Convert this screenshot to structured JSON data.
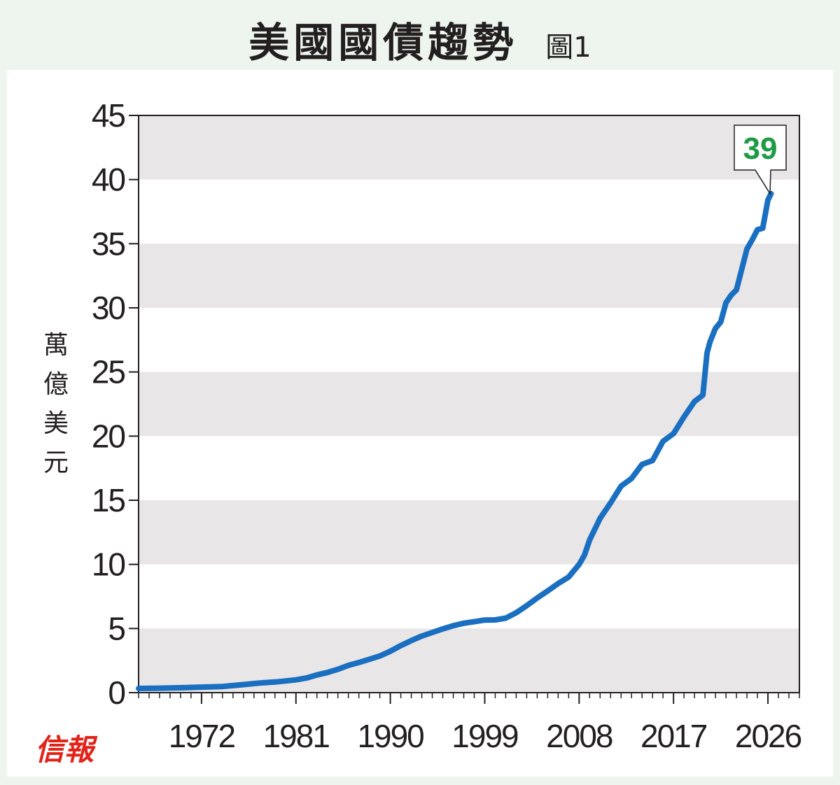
{
  "title": "美國國債趨勢",
  "figure_label": "圖1",
  "logo_text": "信報",
  "colors": {
    "line": "#1a6fc0",
    "band": "#e8e6e7",
    "label_green": "#1f9a45",
    "axis": "#231f20"
  },
  "chart_data": {
    "type": "line",
    "title": "美國國債趨勢",
    "ylabel": "萬億美元",
    "xlabel": "",
    "xlim": [
      1966,
      2029
    ],
    "ylim": [
      0,
      45
    ],
    "x_ticks": [
      1972,
      1981,
      1990,
      1999,
      2008,
      2017,
      2026
    ],
    "y_ticks": [
      0,
      5,
      10,
      15,
      20,
      25,
      30,
      35,
      40,
      45
    ],
    "grid": "alternating horizontal bands",
    "annotation": {
      "text": "39",
      "x": 2026.2,
      "y": 38.9
    },
    "series": [
      {
        "x": [
          1966.0,
          1968.0,
          1970.0,
          1972.0,
          1974.0,
          1975.0,
          1976.0,
          1977.0,
          1978.0,
          1979.0,
          1980.0,
          1981.0,
          1982.0,
          1983.0,
          1984.0,
          1985.0,
          1986.0,
          1987.0,
          1988.0,
          1989.0,
          1990.0,
          1991.0,
          1992.0,
          1993.0,
          1994.0,
          1995.0,
          1996.0,
          1997.0,
          1998.0,
          1999.0,
          2000.0,
          2001.0,
          2002.0,
          2003.0,
          2004.0,
          2005.0,
          2006.0,
          2007.0,
          2008.0,
          2008.5,
          2009.0,
          2010.0,
          2011.0,
          2012.0,
          2013.0,
          2014.0,
          2015.0,
          2016.0,
          2017.0,
          2018.0,
          2019.0,
          2019.8,
          2020.2,
          2020.5,
          2021.0,
          2021.5,
          2022.0,
          2022.5,
          2023.0,
          2023.5,
          2024.0,
          2024.5,
          2025.0,
          2025.5,
          2026.0,
          2026.3
        ],
        "y": [
          0.33,
          0.35,
          0.38,
          0.43,
          0.48,
          0.55,
          0.63,
          0.71,
          0.78,
          0.83,
          0.91,
          1.0,
          1.14,
          1.38,
          1.57,
          1.82,
          2.13,
          2.35,
          2.6,
          2.86,
          3.23,
          3.67,
          4.06,
          4.41,
          4.69,
          4.97,
          5.22,
          5.41,
          5.53,
          5.66,
          5.67,
          5.81,
          6.23,
          6.78,
          7.38,
          7.93,
          8.51,
          9.01,
          10.0,
          10.7,
          11.9,
          13.6,
          14.8,
          16.1,
          16.7,
          17.8,
          18.1,
          19.6,
          20.2,
          21.5,
          22.7,
          23.2,
          26.5,
          27.4,
          28.4,
          28.9,
          30.4,
          31.0,
          31.4,
          33.0,
          34.6,
          35.3,
          36.1,
          36.2,
          38.4,
          38.9
        ]
      }
    ]
  }
}
